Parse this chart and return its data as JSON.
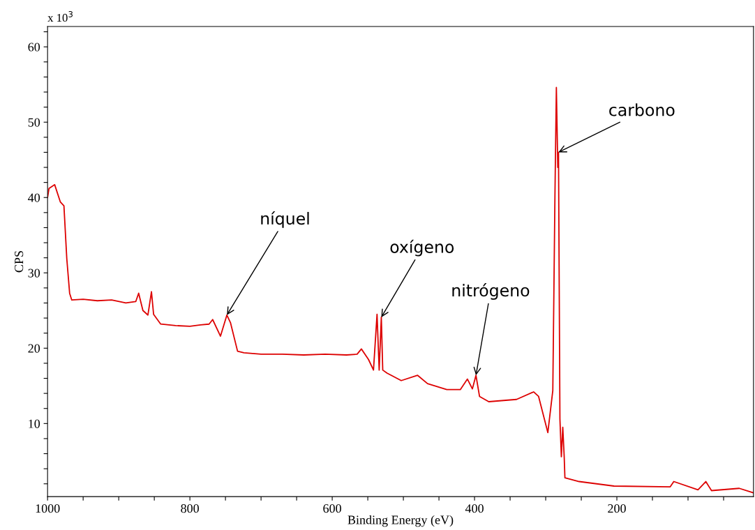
{
  "chart_data": {
    "type": "line",
    "xlabel": "Binding Energy (eV)",
    "ylabel": "CPS",
    "x": [
      1000,
      998,
      990,
      982,
      977,
      973,
      969,
      966,
      950,
      930,
      910,
      890,
      876,
      872,
      866,
      859,
      854,
      851,
      841,
      820,
      800,
      785,
      773,
      768,
      757,
      748,
      743,
      733,
      724,
      700,
      670,
      640,
      610,
      580,
      565,
      559,
      549,
      542,
      537,
      534,
      531,
      529,
      523,
      503,
      480,
      466,
      439,
      420,
      410,
      403,
      398,
      393,
      380,
      341,
      317,
      310,
      297,
      290,
      287,
      285,
      283,
      282,
      280,
      278,
      276,
      274,
      273,
      253,
      204,
      125,
      120,
      86,
      75,
      67,
      28,
      8
    ],
    "series": [
      {
        "color": "#dd0000",
        "values": [
          40.0,
          41.2,
          41.7,
          39.4,
          38.9,
          31.9,
          27.3,
          26.4,
          26.5,
          26.3,
          26.4,
          26.0,
          26.2,
          27.3,
          25.0,
          24.4,
          27.5,
          24.5,
          23.2,
          23.0,
          22.9,
          23.1,
          23.2,
          23.8,
          21.6,
          24.4,
          23.4,
          19.6,
          19.4,
          19.2,
          19.2,
          19.1,
          19.2,
          19.1,
          19.2,
          19.9,
          18.5,
          17.1,
          24.5,
          17.1,
          24.1,
          17.1,
          16.7,
          15.7,
          16.4,
          15.3,
          14.5,
          14.5,
          15.9,
          14.6,
          16.4,
          13.6,
          12.9,
          13.2,
          14.2,
          13.6,
          8.8,
          14.4,
          40.3,
          54.6,
          44.0,
          46.0,
          10.6,
          5.6,
          9.5,
          5.6,
          2.8,
          2.3,
          1.7,
          1.6,
          2.3,
          1.2,
          2.3,
          1.1,
          1.4,
          0.8
        ]
      }
    ],
    "xlim": [
      1000,
      8
    ],
    "xticks": [
      1000,
      {
        "value": 950,
        "label": null
      },
      {
        "value": 900,
        "label": null
      },
      {
        "value": 850,
        "label": null
      },
      800,
      {
        "value": 750,
        "label": null
      },
      {
        "value": 700,
        "label": null
      },
      {
        "value": 650,
        "label": null
      },
      600,
      {
        "value": 550,
        "label": null
      },
      {
        "value": 500,
        "label": null
      },
      {
        "value": 450,
        "label": null
      },
      400,
      {
        "value": 350,
        "label": null
      },
      {
        "value": 300,
        "label": null
      },
      {
        "value": 250,
        "label": null
      },
      200,
      {
        "value": 150,
        "label": null
      },
      {
        "value": 100,
        "label": null
      },
      {
        "value": 50,
        "label": null
      }
    ],
    "ylim": [
      0.3,
      62.7
    ],
    "yticks": [
      {
        "value": 2,
        "label": null
      },
      {
        "value": 4,
        "label": null
      },
      {
        "value": 6,
        "label": null
      },
      {
        "value": 8,
        "label": null
      },
      10,
      {
        "value": 12,
        "label": null
      },
      {
        "value": 14,
        "label": null
      },
      {
        "value": 16,
        "label": null
      },
      {
        "value": 18,
        "label": null
      },
      20,
      {
        "value": 22,
        "label": null
      },
      {
        "value": 24,
        "label": null
      },
      {
        "value": 26,
        "label": null
      },
      {
        "value": 28,
        "label": null
      },
      30,
      {
        "value": 32,
        "label": null
      },
      {
        "value": 34,
        "label": null
      },
      {
        "value": 36,
        "label": null
      },
      {
        "value": 38,
        "label": null
      },
      40,
      {
        "value": 42,
        "label": null
      },
      {
        "value": 44,
        "label": null
      },
      {
        "value": 46,
        "label": null
      },
      {
        "value": 48,
        "label": null
      },
      50,
      {
        "value": 52,
        "label": null
      },
      {
        "value": 54,
        "label": null
      },
      {
        "value": 56,
        "label": null
      },
      {
        "value": 58,
        "label": null
      },
      60,
      {
        "value": 62,
        "label": null
      }
    ],
    "grid": false,
    "marker": "none",
    "line_style": "solid",
    "annotations": [
      "x 10$^{3}$",
      {
        "text": "níquel",
        "x": 748,
        "y": 24.4
      },
      {
        "text": "oxígeno",
        "x": 531,
        "y": 24.1
      },
      {
        "text": "nitrógeno",
        "x": 398,
        "y": 16.4
      },
      {
        "text": "carbono",
        "x": 282,
        "y": 46.0
      }
    ]
  }
}
